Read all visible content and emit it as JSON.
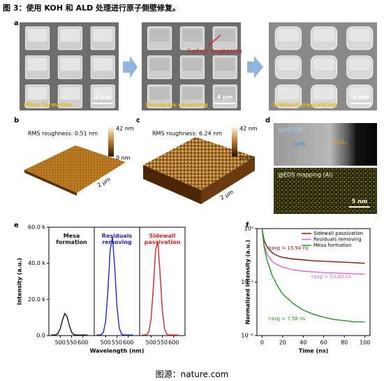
{
  "header": {
    "title": "图 3：使用 KOH 和 ALD 处理进行原子侧壁修复。"
  },
  "panel_labels": [
    "a",
    "b",
    "c",
    "d",
    "e",
    "f"
  ],
  "panel_a": {
    "images": [
      {
        "label": "Mesa formation",
        "scale": "4 μm"
      },
      {
        "label": "Residuals removing",
        "scale": "4 μm",
        "annotation": "Surface roughening"
      },
      {
        "label": "Sidewall passivation",
        "scale": "4 μm"
      }
    ]
  },
  "panel_b": {
    "rms": "RMS roughness: 0.51 nm",
    "colorbar_max": "42 nm",
    "colorbar_min": "0 nm",
    "scale": "2 μm"
  },
  "panel_c": {
    "rms": "RMS roughness: 6.24 nm",
    "colorbar_max": "42 nm",
    "colorbar_min": "0 nm",
    "scale": "2 μm"
  },
  "panel_d": {
    "top_label": "@HRTEM",
    "gan": "GaN",
    "al2o3": "Al₂O₃",
    "bottom_label": "@EDS mapping (Al)",
    "scale": "5 nm"
  },
  "chart_data": [
    {
      "type": "line",
      "subplots": true,
      "x_label": "Wavelength (nm)",
      "y_label": "Intensity (a.u.)",
      "x": [
        460,
        470,
        480,
        490,
        500,
        510,
        520,
        530,
        540,
        550,
        560,
        570,
        580,
        590,
        600,
        610,
        620
      ],
      "xlim": [
        450,
        650
      ],
      "xticks": [
        500,
        550,
        600
      ],
      "ylim": [
        0,
        60000
      ],
      "yticks": [
        {
          "value": 0,
          "label": "0.0"
        },
        {
          "value": 20000,
          "label": "20.0 k"
        },
        {
          "value": 40000,
          "label": "40.0 k"
        },
        {
          "value": 60000,
          "label": "60.0 k"
        }
      ],
      "series": [
        {
          "name": "Mesa formation",
          "color": "#111111",
          "values": [
            300,
            300,
            400,
            1200,
            3800,
            8600,
            12200,
            10500,
            5600,
            1900,
            600,
            300,
            300,
            300,
            300,
            300,
            300
          ]
        },
        {
          "name": "Residuals removing",
          "color": "#2323c8",
          "values": [
            300,
            300,
            450,
            1700,
            7700,
            24500,
            47000,
            54700,
            38300,
            16300,
            4300,
            900,
            300,
            300,
            300,
            300,
            300
          ]
        },
        {
          "name": "Sidewall passivation",
          "color": "#e02020",
          "values": [
            300,
            300,
            500,
            1900,
            8600,
            25700,
            47000,
            52100,
            34700,
            14100,
            3600,
            800,
            300,
            300,
            300,
            300,
            300
          ]
        }
      ]
    },
    {
      "type": "line",
      "log_y": true,
      "legend": "upper right",
      "x_label": "Time (ns)",
      "y_label": "Normalized intensity (a.u.)",
      "x": [
        0,
        2,
        5,
        10,
        15,
        20,
        30,
        40,
        50,
        60,
        70,
        80,
        90,
        100
      ],
      "xlim": [
        -5,
        105
      ],
      "xticks": [
        0,
        20,
        40,
        60,
        80,
        100
      ],
      "ylim": [
        0.01,
        1
      ],
      "yticks": [
        {
          "value": 1,
          "label": "10⁰"
        },
        {
          "value": 0.1,
          "label": "10⁻¹"
        },
        {
          "value": 0.01,
          "label": "10⁻²"
        }
      ],
      "series": [
        {
          "name": "Sidewall passivation",
          "color": "#8b1010",
          "annotation": "τavg = 15.94 ns",
          "values": [
            1,
            0.6,
            0.45,
            0.35,
            0.31,
            0.29,
            0.27,
            0.26,
            0.25,
            0.245,
            0.24,
            0.235,
            0.23,
            0.225
          ]
        },
        {
          "name": "Residuals removing",
          "color": "#e060e0",
          "annotation": "τavg = 10.60 ns",
          "values": [
            1,
            0.5,
            0.33,
            0.24,
            0.21,
            0.19,
            0.17,
            0.16,
            0.155,
            0.15,
            0.148,
            0.145,
            0.143,
            0.14
          ]
        },
        {
          "name": "Mesa formation",
          "color": "#1a9a1a",
          "annotation": "τavg = 7.58 ns",
          "values": [
            1,
            0.45,
            0.25,
            0.13,
            0.085,
            0.06,
            0.04,
            0.03,
            0.025,
            0.022,
            0.02,
            0.019,
            0.018,
            0.018
          ]
        }
      ]
    }
  ],
  "footer": "图源：nature.com"
}
